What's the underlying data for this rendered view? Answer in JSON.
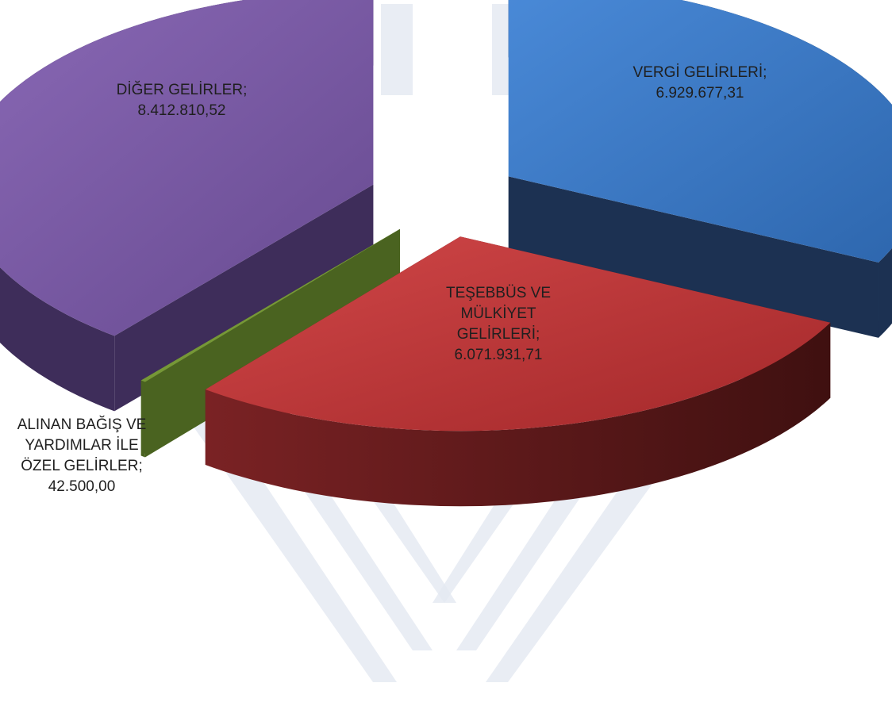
{
  "chart_data": {
    "type": "pie",
    "style": "3d-exploded",
    "title": "",
    "categories": [
      "VERGİ GELİRLERİ",
      "TEŞEBBÜS VE MÜLKİYET GELİRLERİ",
      "ALINAN BAĞIŞ VE YARDIMLAR İLE ÖZEL GELİRLER",
      "DİĞER GELİRLER"
    ],
    "values": [
      6929677.31,
      6071931.71,
      42500.0,
      8412810.52
    ],
    "value_labels": [
      "6.929.677,31",
      "6.071.931,71",
      "42.500,00",
      "8.412.810,52"
    ],
    "label_lines": [
      [
        "VERGİ GELİRLERİ;",
        "6.929.677,31"
      ],
      [
        "TEŞEBBÜS VE",
        "MÜLKİYET",
        "GELİRLERİ;",
        "6.071.931,71"
      ],
      [
        "ALINAN BAĞIŞ VE",
        "YARDIMLAR İLE",
        "ÖZEL GELİRLER;",
        "42.500,00"
      ],
      [
        "DİĞER GELİRLER;",
        "8.412.810,52"
      ]
    ],
    "colors": [
      "#3d7cc9",
      "#c0393b",
      "#7a9c34",
      "#7b5aa6"
    ],
    "side_colors": [
      "#1c3152",
      "#5c1a1a",
      "#4a6320",
      "#3e2d5a"
    ],
    "watermark_color": "#e3e8f1",
    "legend": "none"
  }
}
